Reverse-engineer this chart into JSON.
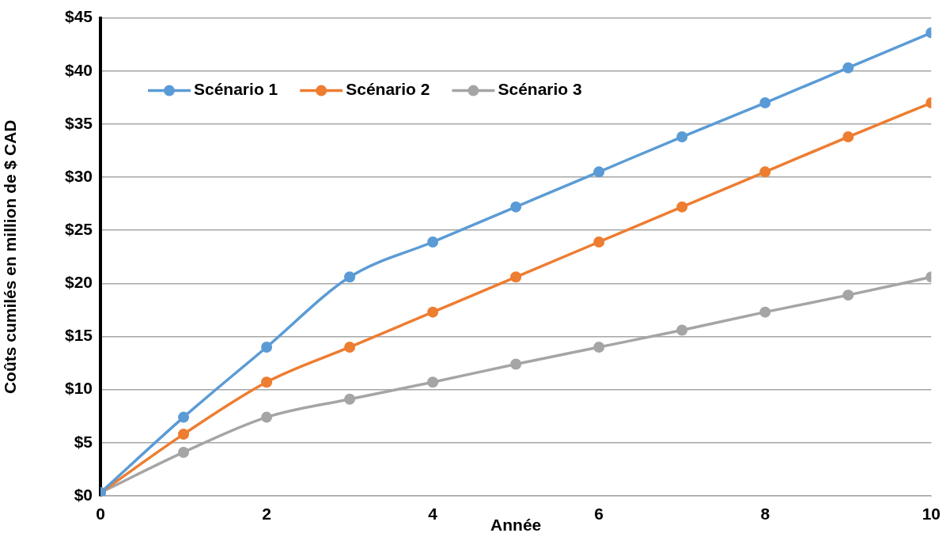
{
  "chart_data": {
    "type": "line",
    "xlabel": "Année",
    "ylabel": "Coûts cumilés en million de $ CAD",
    "x": [
      0,
      1,
      2,
      3,
      4,
      5,
      6,
      7,
      8,
      9,
      10
    ],
    "series": [
      {
        "name": "Scénario 1",
        "color": "#5b9bd5",
        "values": [
          0.3,
          7.4,
          14.0,
          20.6,
          23.9,
          27.2,
          30.5,
          33.8,
          37.0,
          40.3,
          43.6
        ]
      },
      {
        "name": "Scénario 2",
        "color": "#ed7d31",
        "values": [
          0.3,
          5.8,
          10.7,
          14.0,
          17.3,
          20.6,
          23.9,
          27.2,
          30.5,
          33.8,
          37.0
        ]
      },
      {
        "name": "Scénario 3",
        "color": "#a5a5a5",
        "values": [
          0.3,
          4.1,
          7.4,
          9.1,
          10.7,
          12.4,
          14.0,
          15.6,
          17.3,
          18.9,
          20.6
        ]
      }
    ],
    "xlim": [
      0,
      10
    ],
    "xticks": [
      0,
      2,
      4,
      6,
      8,
      10
    ],
    "ylim": [
      0,
      45
    ],
    "yticks": [
      {
        "value": 0,
        "label": "$0"
      },
      {
        "value": 5,
        "label": "$5"
      },
      {
        "value": 10,
        "label": "$10"
      },
      {
        "value": 15,
        "label": "$15"
      },
      {
        "value": 20,
        "label": "$20"
      },
      {
        "value": 25,
        "label": "$25"
      },
      {
        "value": 30,
        "label": "$30"
      },
      {
        "value": 35,
        "label": "$35"
      },
      {
        "value": 40,
        "label": "$40"
      },
      {
        "value": 45,
        "label": "$45"
      }
    ],
    "grid": "y",
    "legend": "top left",
    "marker": "circle",
    "line_style": "solid"
  }
}
